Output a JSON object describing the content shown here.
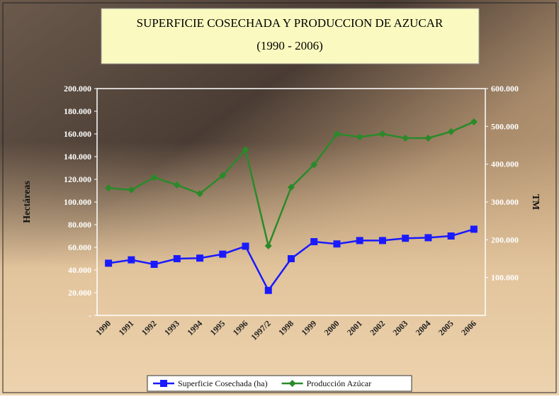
{
  "chart_data": {
    "type": "line",
    "title": "SUPERFICIE COSECHADA Y PRODUCCION DE AZUCAR",
    "subtitle": "(1990 - 2006)",
    "y_label": "Hectáreas",
    "y2_label": "TM",
    "categories": [
      "1990",
      "1991",
      "1992",
      "1993",
      "1994",
      "1995",
      "1996",
      "1997/2",
      "1998",
      "1999",
      "2000",
      "2001",
      "2002",
      "2003",
      "2004",
      "2005",
      "2006"
    ],
    "series": [
      {
        "name": "Superficie Cosechada (ha)",
        "color": "#1a1aff",
        "marker": "square",
        "values": [
          46000,
          49000,
          45000,
          50000,
          50500,
          54000,
          61000,
          22000,
          50000,
          65000,
          63000,
          66000,
          66000,
          68000,
          68500,
          70000,
          76000
        ]
      },
      {
        "name": "Producción Azúcar",
        "color": "#2a8a2a",
        "marker": "diamond",
        "axis": "y2",
        "values": [
          337000,
          332000,
          365000,
          345000,
          322000,
          370000,
          438000,
          184000,
          339000,
          399000,
          480000,
          472000,
          480000,
          469000,
          469000,
          486000,
          512000
        ]
      }
    ],
    "ylim": [
      0,
      200000
    ],
    "yticks": [
      {
        "value": 0,
        "label": "-"
      },
      {
        "value": 20000,
        "label": "20.000"
      },
      {
        "value": 40000,
        "label": "40.000"
      },
      {
        "value": 60000,
        "label": "60.000"
      },
      {
        "value": 80000,
        "label": "80.000"
      },
      {
        "value": 100000,
        "label": "100.000"
      },
      {
        "value": 120000,
        "label": "120.000"
      },
      {
        "value": 140000,
        "label": "140.000"
      },
      {
        "value": 160000,
        "label": "160.000"
      },
      {
        "value": 180000,
        "label": "180.000"
      },
      {
        "value": 200000,
        "label": "200.000"
      }
    ],
    "y2lim": [
      0,
      600000
    ],
    "y2ticks": [
      {
        "value": 100000,
        "label": "100.000"
      },
      {
        "value": 200000,
        "label": "200.000"
      },
      {
        "value": 300000,
        "label": "300.000"
      },
      {
        "value": 400000,
        "label": "400.000"
      },
      {
        "value": 500000,
        "label": "500.000"
      },
      {
        "value": 600000,
        "label": "600.000"
      }
    ],
    "legend": "bottom"
  }
}
